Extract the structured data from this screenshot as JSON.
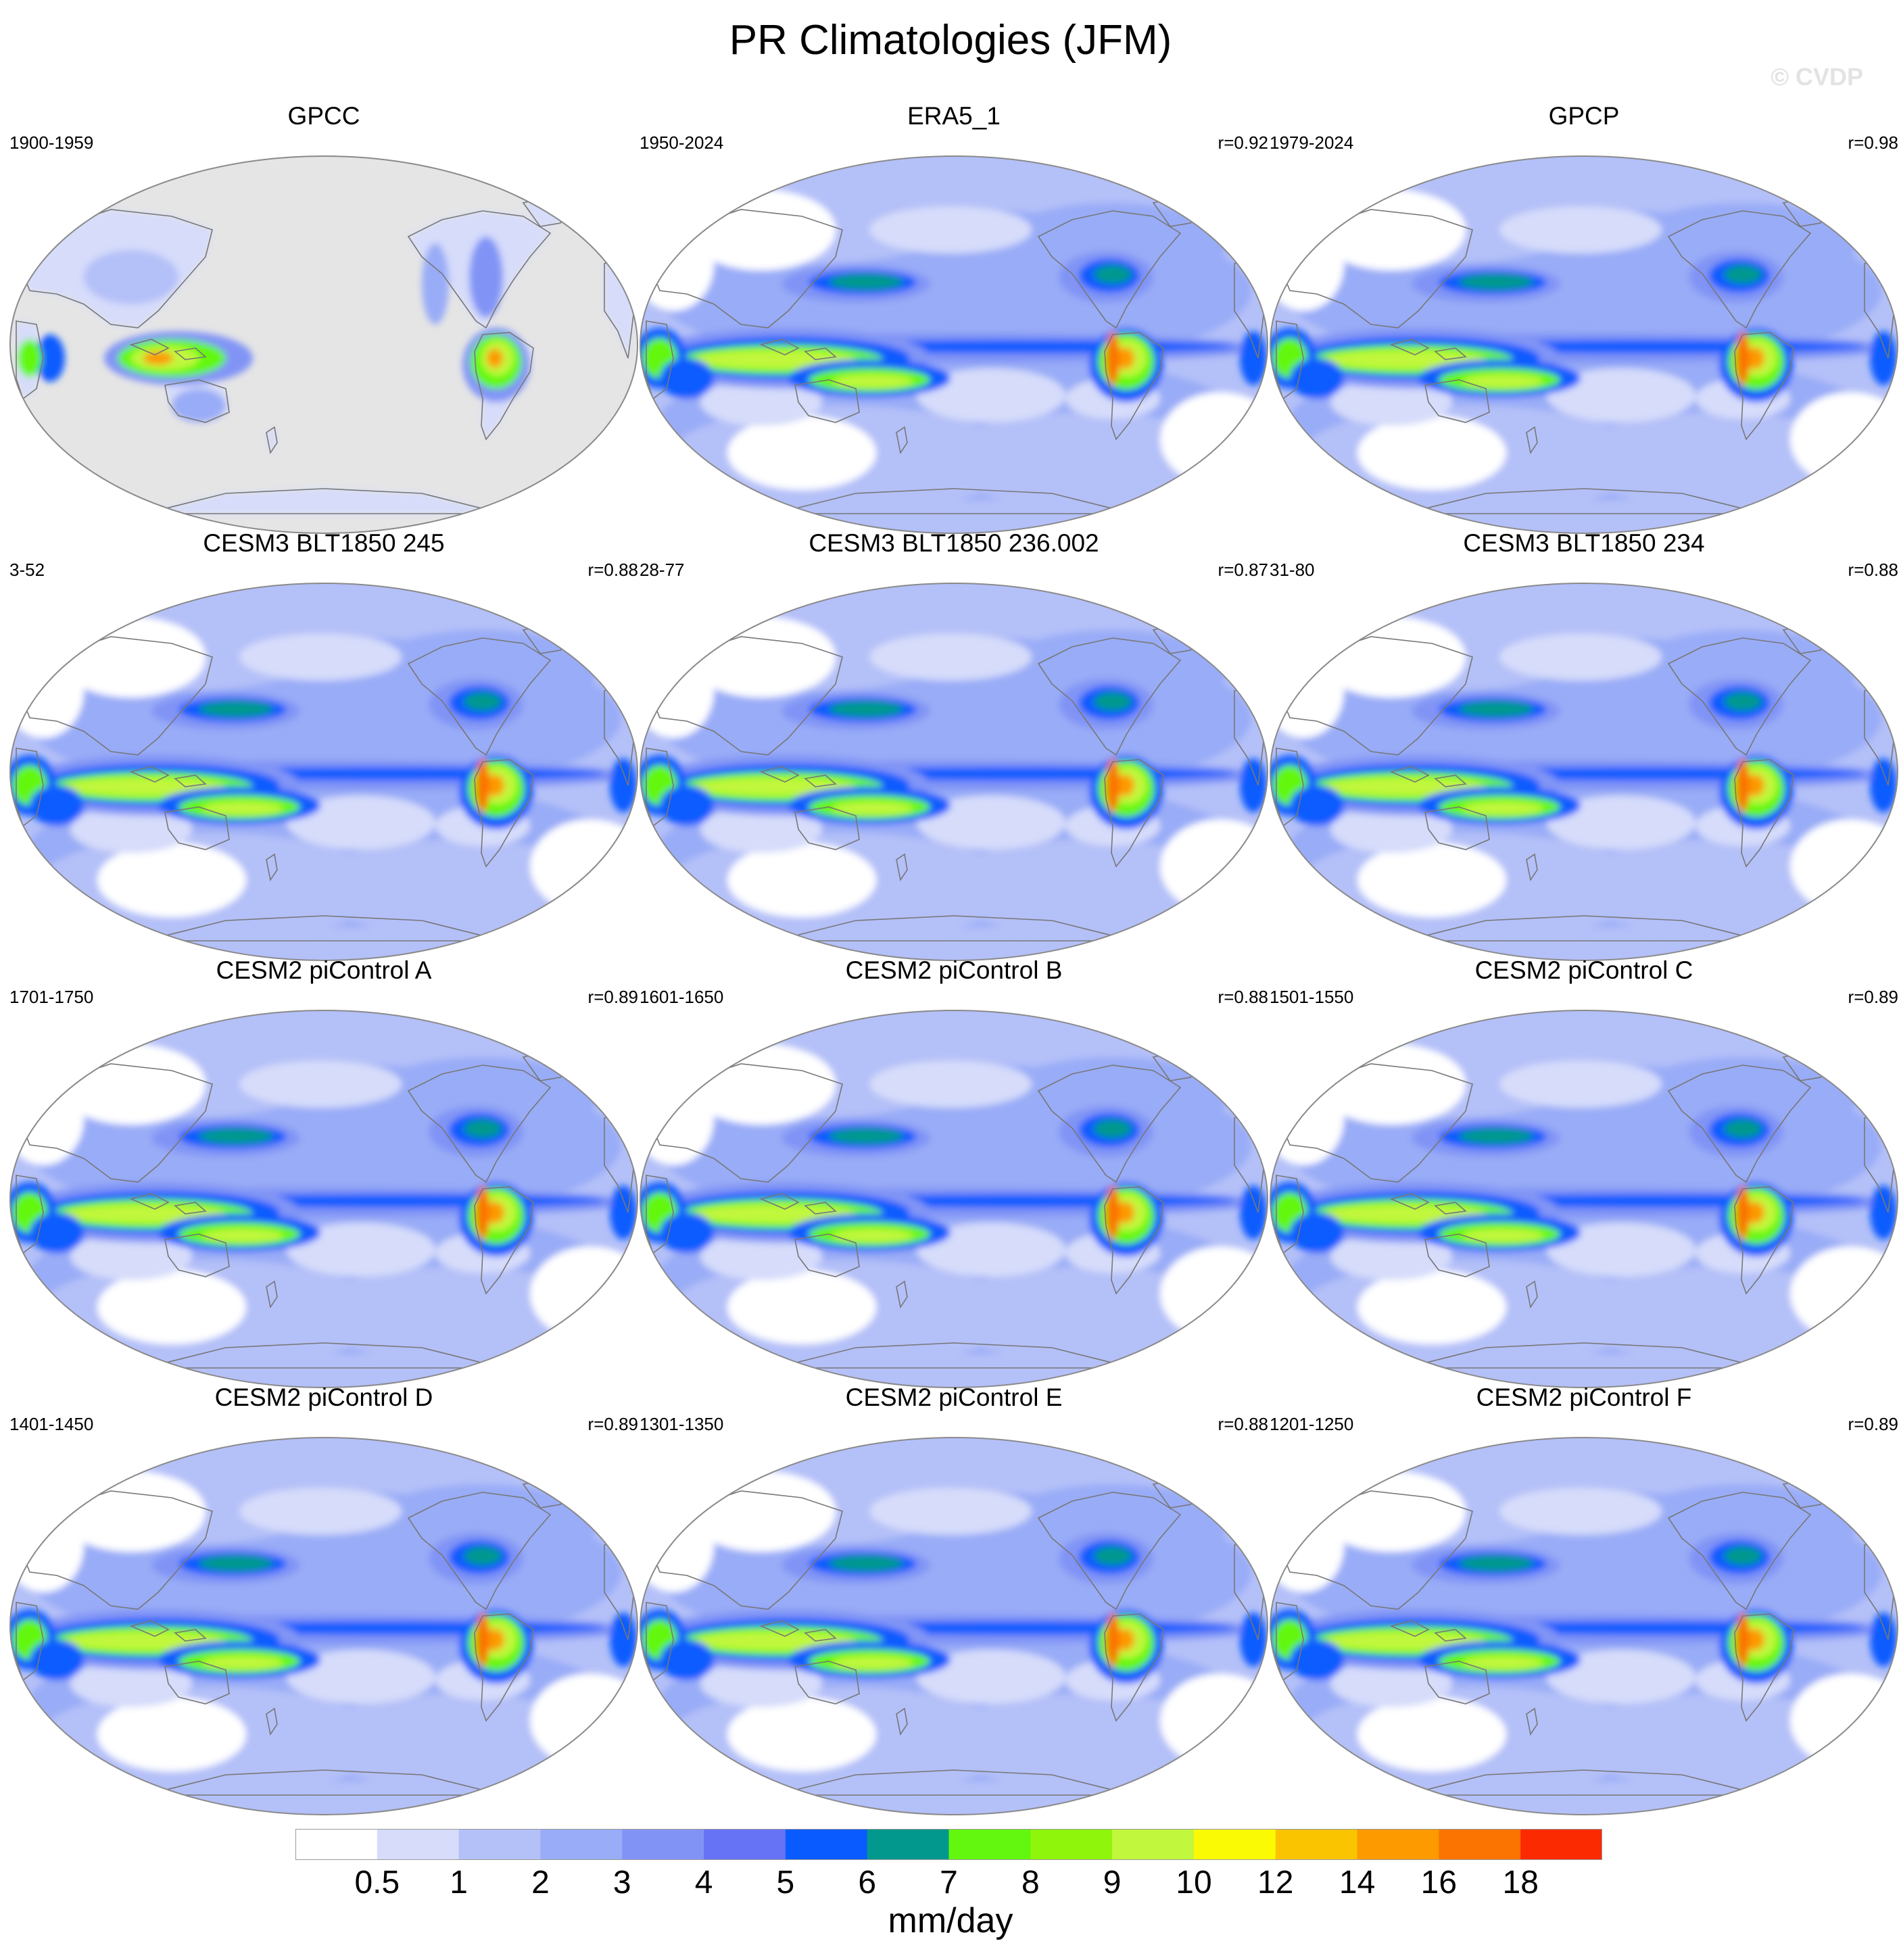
{
  "title": "PR Climatologies (JFM)",
  "watermark": "© CVDP",
  "panels": [
    {
      "title": "GPCC",
      "years": "1900-1959",
      "corr": "",
      "land_only": true
    },
    {
      "title": "ERA5_1",
      "years": "1950-2024",
      "corr": "r=0.92",
      "land_only": false
    },
    {
      "title": "GPCP",
      "years": "1979-2024",
      "corr": "r=0.98",
      "land_only": false
    },
    {
      "title": "CESM3 BLT1850 245",
      "years": "3-52",
      "corr": "r=0.88",
      "land_only": false
    },
    {
      "title": "CESM3 BLT1850 236.002",
      "years": "28-77",
      "corr": "r=0.87",
      "land_only": false
    },
    {
      "title": "CESM3 BLT1850 234",
      "years": "31-80",
      "corr": "r=0.88",
      "land_only": false
    },
    {
      "title": "CESM2 piControl A",
      "years": "1701-1750",
      "corr": "r=0.89",
      "land_only": false
    },
    {
      "title": "CESM2 piControl B",
      "years": "1601-1650",
      "corr": "r=0.88",
      "land_only": false
    },
    {
      "title": "CESM2 piControl C",
      "years": "1501-1550",
      "corr": "r=0.89",
      "land_only": false
    },
    {
      "title": "CESM2 piControl D",
      "years": "1401-1450",
      "corr": "r=0.89",
      "land_only": false
    },
    {
      "title": "CESM2 piControl E",
      "years": "1301-1350",
      "corr": "r=0.88",
      "land_only": false
    },
    {
      "title": "CESM2 piControl F",
      "years": "1201-1250",
      "corr": "r=0.89",
      "land_only": false
    }
  ],
  "colorbar": {
    "labels": [
      "0.5",
      "1",
      "2",
      "3",
      "4",
      "5",
      "6",
      "7",
      "8",
      "9",
      "10",
      "12",
      "14",
      "16",
      "18"
    ],
    "colors": [
      "#ffffff",
      "#d6dcfa",
      "#b4c0f8",
      "#99acf7",
      "#8194f6",
      "#6673f4",
      "#0a5bff",
      "#03988e",
      "#63f70f",
      "#8ef50b",
      "#c1f73d",
      "#fafa05",
      "#fbc400",
      "#fc9a00",
      "#fb7300",
      "#fb2a00"
    ],
    "unit": "mm/day"
  },
  "map_colors": {
    "ocean_missing": "#e5e5e5",
    "coastline": "#777777",
    "border": "#8a8a8a"
  }
}
